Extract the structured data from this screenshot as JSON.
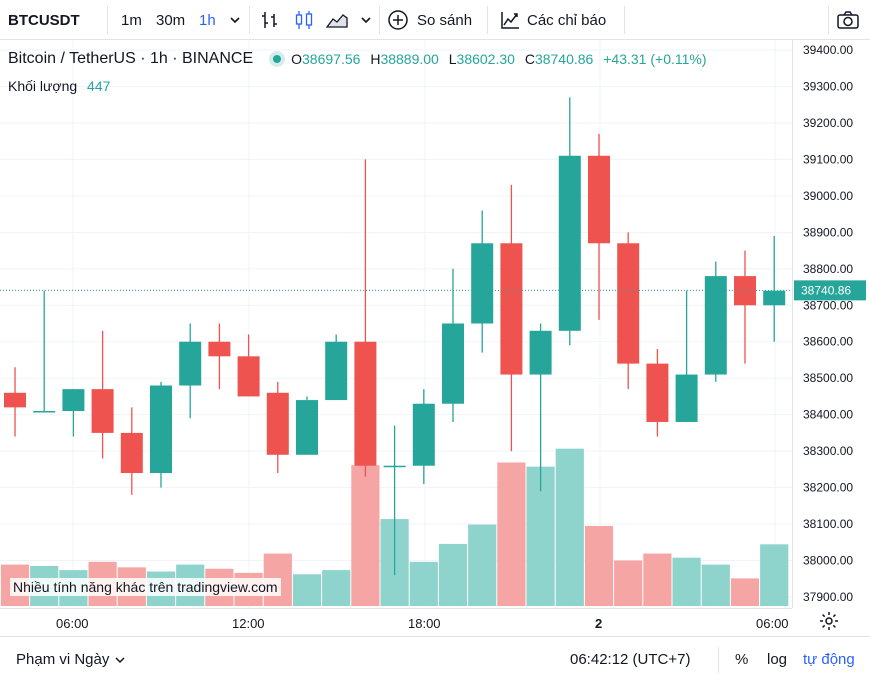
{
  "toolbar": {
    "symbol": "BTCUSDT",
    "intervals": [
      "1m",
      "30m",
      "1h"
    ],
    "active_interval": "1h",
    "compare_label": "So sánh",
    "indicators_label": "Các chỉ báo"
  },
  "legend": {
    "title": "Bitcoin / TetherUS · 1h · BINANCE",
    "o_label": "O",
    "o_value": "38697.56",
    "h_label": "H",
    "h_value": "38889.00",
    "l_label": "L",
    "l_value": "38602.30",
    "c_label": "C",
    "c_value": "38740.86",
    "change": "+43.31 (+0.11%)",
    "volume_label": "Khối lượng",
    "volume_value": "447"
  },
  "promo_text": "Nhiều tính năng khác trên tradingview.com",
  "price_axis": {
    "ticks": [
      "39400.00",
      "39300.00",
      "39200.00",
      "39100.00",
      "39000.00",
      "38900.00",
      "38800.00",
      "38700.00",
      "38600.00",
      "38500.00",
      "38400.00",
      "38300.00",
      "38200.00",
      "38100.00",
      "38000.00",
      "37900.00"
    ],
    "current_price": "38740.86"
  },
  "time_axis": {
    "labels": [
      "06:00",
      "12:00",
      "18:00",
      "2",
      "06:00"
    ]
  },
  "bottom_bar": {
    "range_label": "Phạm vi Ngày",
    "clock": "06:42:12 (UTC+7)",
    "percent_label": "%",
    "log_label": "log",
    "auto_label": "tự động"
  },
  "colors": {
    "up": "#26a69a",
    "down": "#ef5350",
    "up_vol": "#8fd4cc",
    "down_vol": "#f5a5a3"
  },
  "chart_data": {
    "type": "candlestick",
    "ylim": [
      37900,
      39400
    ],
    "candles": [
      {
        "o": 38460,
        "h": 38530,
        "l": 38340,
        "c": 38420
      },
      {
        "o": 38410,
        "h": 38740,
        "l": 38410,
        "c": 38410
      },
      {
        "o": 38410,
        "h": 38470,
        "l": 38340,
        "c": 38470
      },
      {
        "o": 38470,
        "h": 38630,
        "l": 38280,
        "c": 38350
      },
      {
        "o": 38350,
        "h": 38420,
        "l": 38180,
        "c": 38240
      },
      {
        "o": 38240,
        "h": 38490,
        "l": 38200,
        "c": 38480
      },
      {
        "o": 38480,
        "h": 38650,
        "l": 38390,
        "c": 38600
      },
      {
        "o": 38600,
        "h": 38650,
        "l": 38470,
        "c": 38560
      },
      {
        "o": 38560,
        "h": 38620,
        "l": 38450,
        "c": 38450
      },
      {
        "o": 38460,
        "h": 38490,
        "l": 38240,
        "c": 38290
      },
      {
        "o": 38290,
        "h": 38450,
        "l": 38290,
        "c": 38440
      },
      {
        "o": 38440,
        "h": 38620,
        "l": 38440,
        "c": 38600
      },
      {
        "o": 38600,
        "h": 39100,
        "l": 38230,
        "c": 38260
      },
      {
        "o": 38260,
        "h": 38370,
        "l": 37960,
        "c": 38260
      },
      {
        "o": 38260,
        "h": 38470,
        "l": 38210,
        "c": 38430
      },
      {
        "o": 38430,
        "h": 38800,
        "l": 38380,
        "c": 38650
      },
      {
        "o": 38650,
        "h": 38960,
        "l": 38570,
        "c": 38870
      },
      {
        "o": 38870,
        "h": 39030,
        "l": 38300,
        "c": 38510
      },
      {
        "o": 38510,
        "h": 38650,
        "l": 38190,
        "c": 38630
      },
      {
        "o": 38630,
        "h": 39270,
        "l": 38590,
        "c": 39110
      },
      {
        "o": 39110,
        "h": 39170,
        "l": 38660,
        "c": 38870
      },
      {
        "o": 38870,
        "h": 38900,
        "l": 38470,
        "c": 38540
      },
      {
        "o": 38540,
        "h": 38580,
        "l": 38340,
        "c": 38380
      },
      {
        "o": 38380,
        "h": 38740,
        "l": 38380,
        "c": 38510
      },
      {
        "o": 38510,
        "h": 38820,
        "l": 38490,
        "c": 38780
      },
      {
        "o": 38780,
        "h": 38850,
        "l": 38540,
        "c": 38700
      },
      {
        "o": 38700,
        "h": 38890,
        "l": 38600,
        "c": 38740
      }
    ],
    "volumes": [
      300,
      290,
      260,
      320,
      280,
      250,
      300,
      270,
      240,
      380,
      230,
      260,
      1020,
      630,
      320,
      450,
      590,
      1040,
      1010,
      1140,
      580,
      330,
      380,
      350,
      300,
      200,
      447
    ]
  }
}
